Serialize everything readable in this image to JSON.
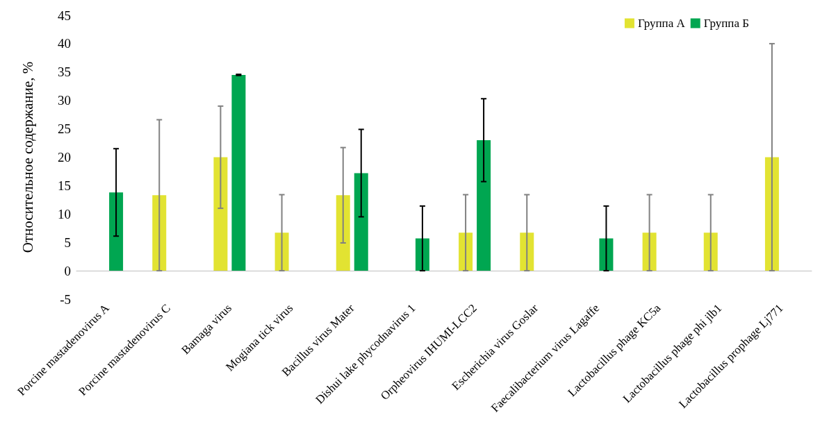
{
  "chart_data": {
    "type": "bar",
    "ylabel": "Относительное содержание, %",
    "categories": [
      "Porcine mastadenovirus A",
      "Porcine mastadenovirus C",
      "Bamaga virus",
      "Mogiana tick virus",
      "Bacillus virus Mater",
      "Dishui lake phycodnavirus 1",
      "Orpheovirus IHUMI-LCC2",
      "Escherichia virus Goslar",
      "Faecalibacterium virus Lagaffe",
      "Lactobacillus phage KC5a",
      "Lactobacillus phage phi jlb1",
      "Lactobacillus prophage Lj771"
    ],
    "series": [
      {
        "name": "Группа А",
        "color": "#e2e332",
        "values": [
          null,
          13.3,
          20,
          6.7,
          13.3,
          null,
          6.7,
          6.7,
          null,
          6.7,
          6.7,
          20
        ],
        "errors": [
          null,
          13.3,
          9,
          6.7,
          8.4,
          null,
          6.7,
          6.7,
          null,
          6.7,
          6.7,
          20
        ]
      },
      {
        "name": "Группа Б",
        "color": "#00a651",
        "values": [
          13.8,
          null,
          34.5,
          null,
          17.2,
          5.7,
          23,
          null,
          5.7,
          null,
          null,
          null
        ],
        "errors": [
          7.7,
          null,
          0.1,
          null,
          7.7,
          5.7,
          7.3,
          null,
          5.7,
          null,
          null,
          null
        ]
      }
    ],
    "ylim": [
      -5,
      45
    ],
    "yticks": [
      -5,
      0,
      5,
      10,
      15,
      20,
      25,
      30,
      35,
      40,
      45
    ],
    "grid": false,
    "legend": "top right"
  }
}
